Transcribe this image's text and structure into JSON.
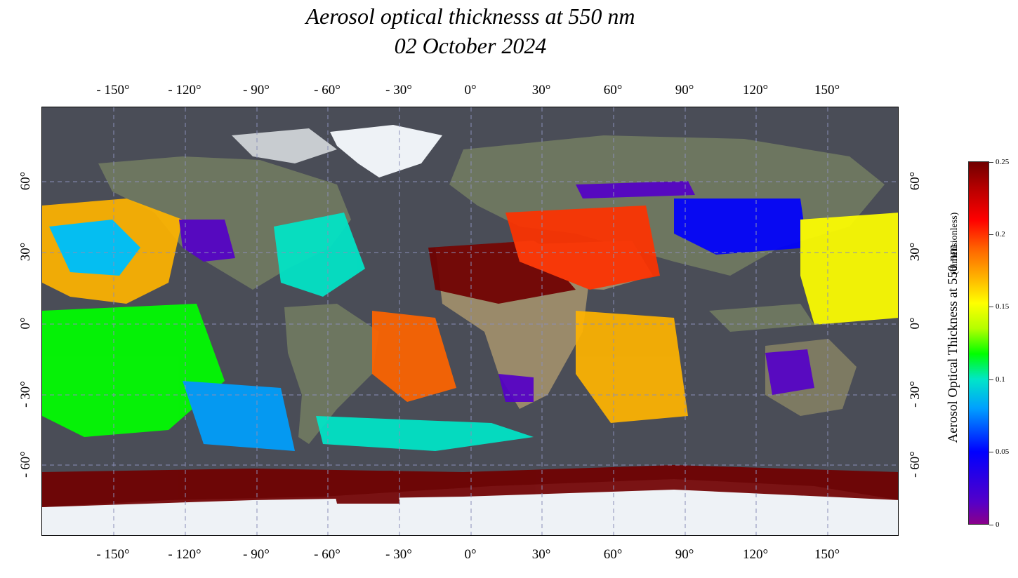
{
  "title": {
    "line1": "Aerosol optical thicknesss at 550 nm",
    "line2": "02 October 2024"
  },
  "longitude_ticks": [
    "- 150°",
    "- 120°",
    "- 90°",
    "- 60°",
    "- 30°",
    "0°",
    "30°",
    "60°",
    "90°",
    "120°",
    "150°"
  ],
  "latitude_ticks": [
    "60°",
    "30°",
    "0°",
    "- 30°",
    "- 60°"
  ],
  "colorbar": {
    "title": "Aerosol Optical Thickness at 550 nm",
    "unit": "(dimensionless)",
    "ticks": [
      "0",
      "0.05",
      "0.1",
      "0.15",
      "0.2",
      "0.25"
    ],
    "range": [
      0,
      0.25
    ]
  },
  "colors": {
    "ocean": "#4a4d57",
    "land": "#6d7660",
    "desert": "#9a8a6a",
    "ice": "#eef2f6",
    "grid": "#8a8fb8"
  }
}
